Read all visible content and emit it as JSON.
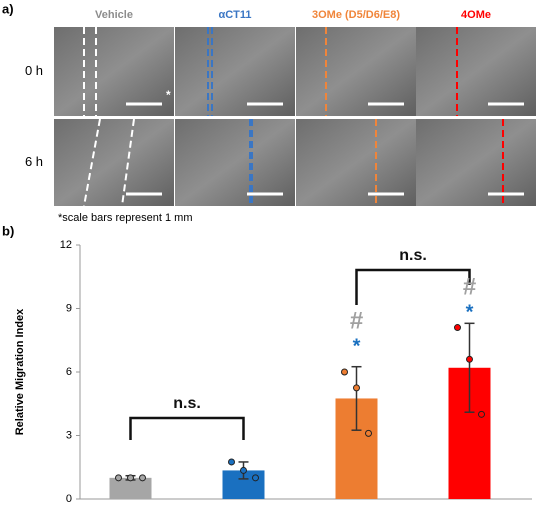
{
  "panel_a": {
    "label": "a)",
    "columns": [
      "Vehicle",
      "αCT11",
      "3OMe (D5/D6/E8)",
      "4OMe"
    ],
    "column_colors": [
      "#8c8c8c",
      "#3a76c4",
      "#f0853a",
      "#ff0000"
    ],
    "rows": [
      "0 h",
      "6 h"
    ],
    "scale_bar_mark": "*",
    "scale_note": "*scale bars represent 1 mm"
  },
  "chart_data": {
    "type": "bar",
    "panel_label": "b)",
    "y_label": "Relative Migration Index",
    "categories": [
      null,
      null,
      null,
      null
    ],
    "values": [
      1.0,
      1.35,
      4.75,
      6.2
    ],
    "errors": [
      0.1,
      0.4,
      1.5,
      2.1
    ],
    "colors": [
      "#a6a6a6",
      "#1a70c0",
      "#ed7d31",
      "#ff0000"
    ],
    "points": [
      [
        1.0,
        1.0,
        1.0
      ],
      [
        1.75,
        1.35,
        1.0
      ],
      [
        6.0,
        5.25,
        3.1
      ],
      [
        8.1,
        6.6,
        4.0
      ]
    ],
    "annotations": [
      "n.s.",
      "n.s.",
      "#",
      "#",
      "*",
      "*"
    ],
    "ylim": [
      0,
      12
    ],
    "yticks": [
      0,
      3,
      6,
      9,
      12
    ]
  }
}
